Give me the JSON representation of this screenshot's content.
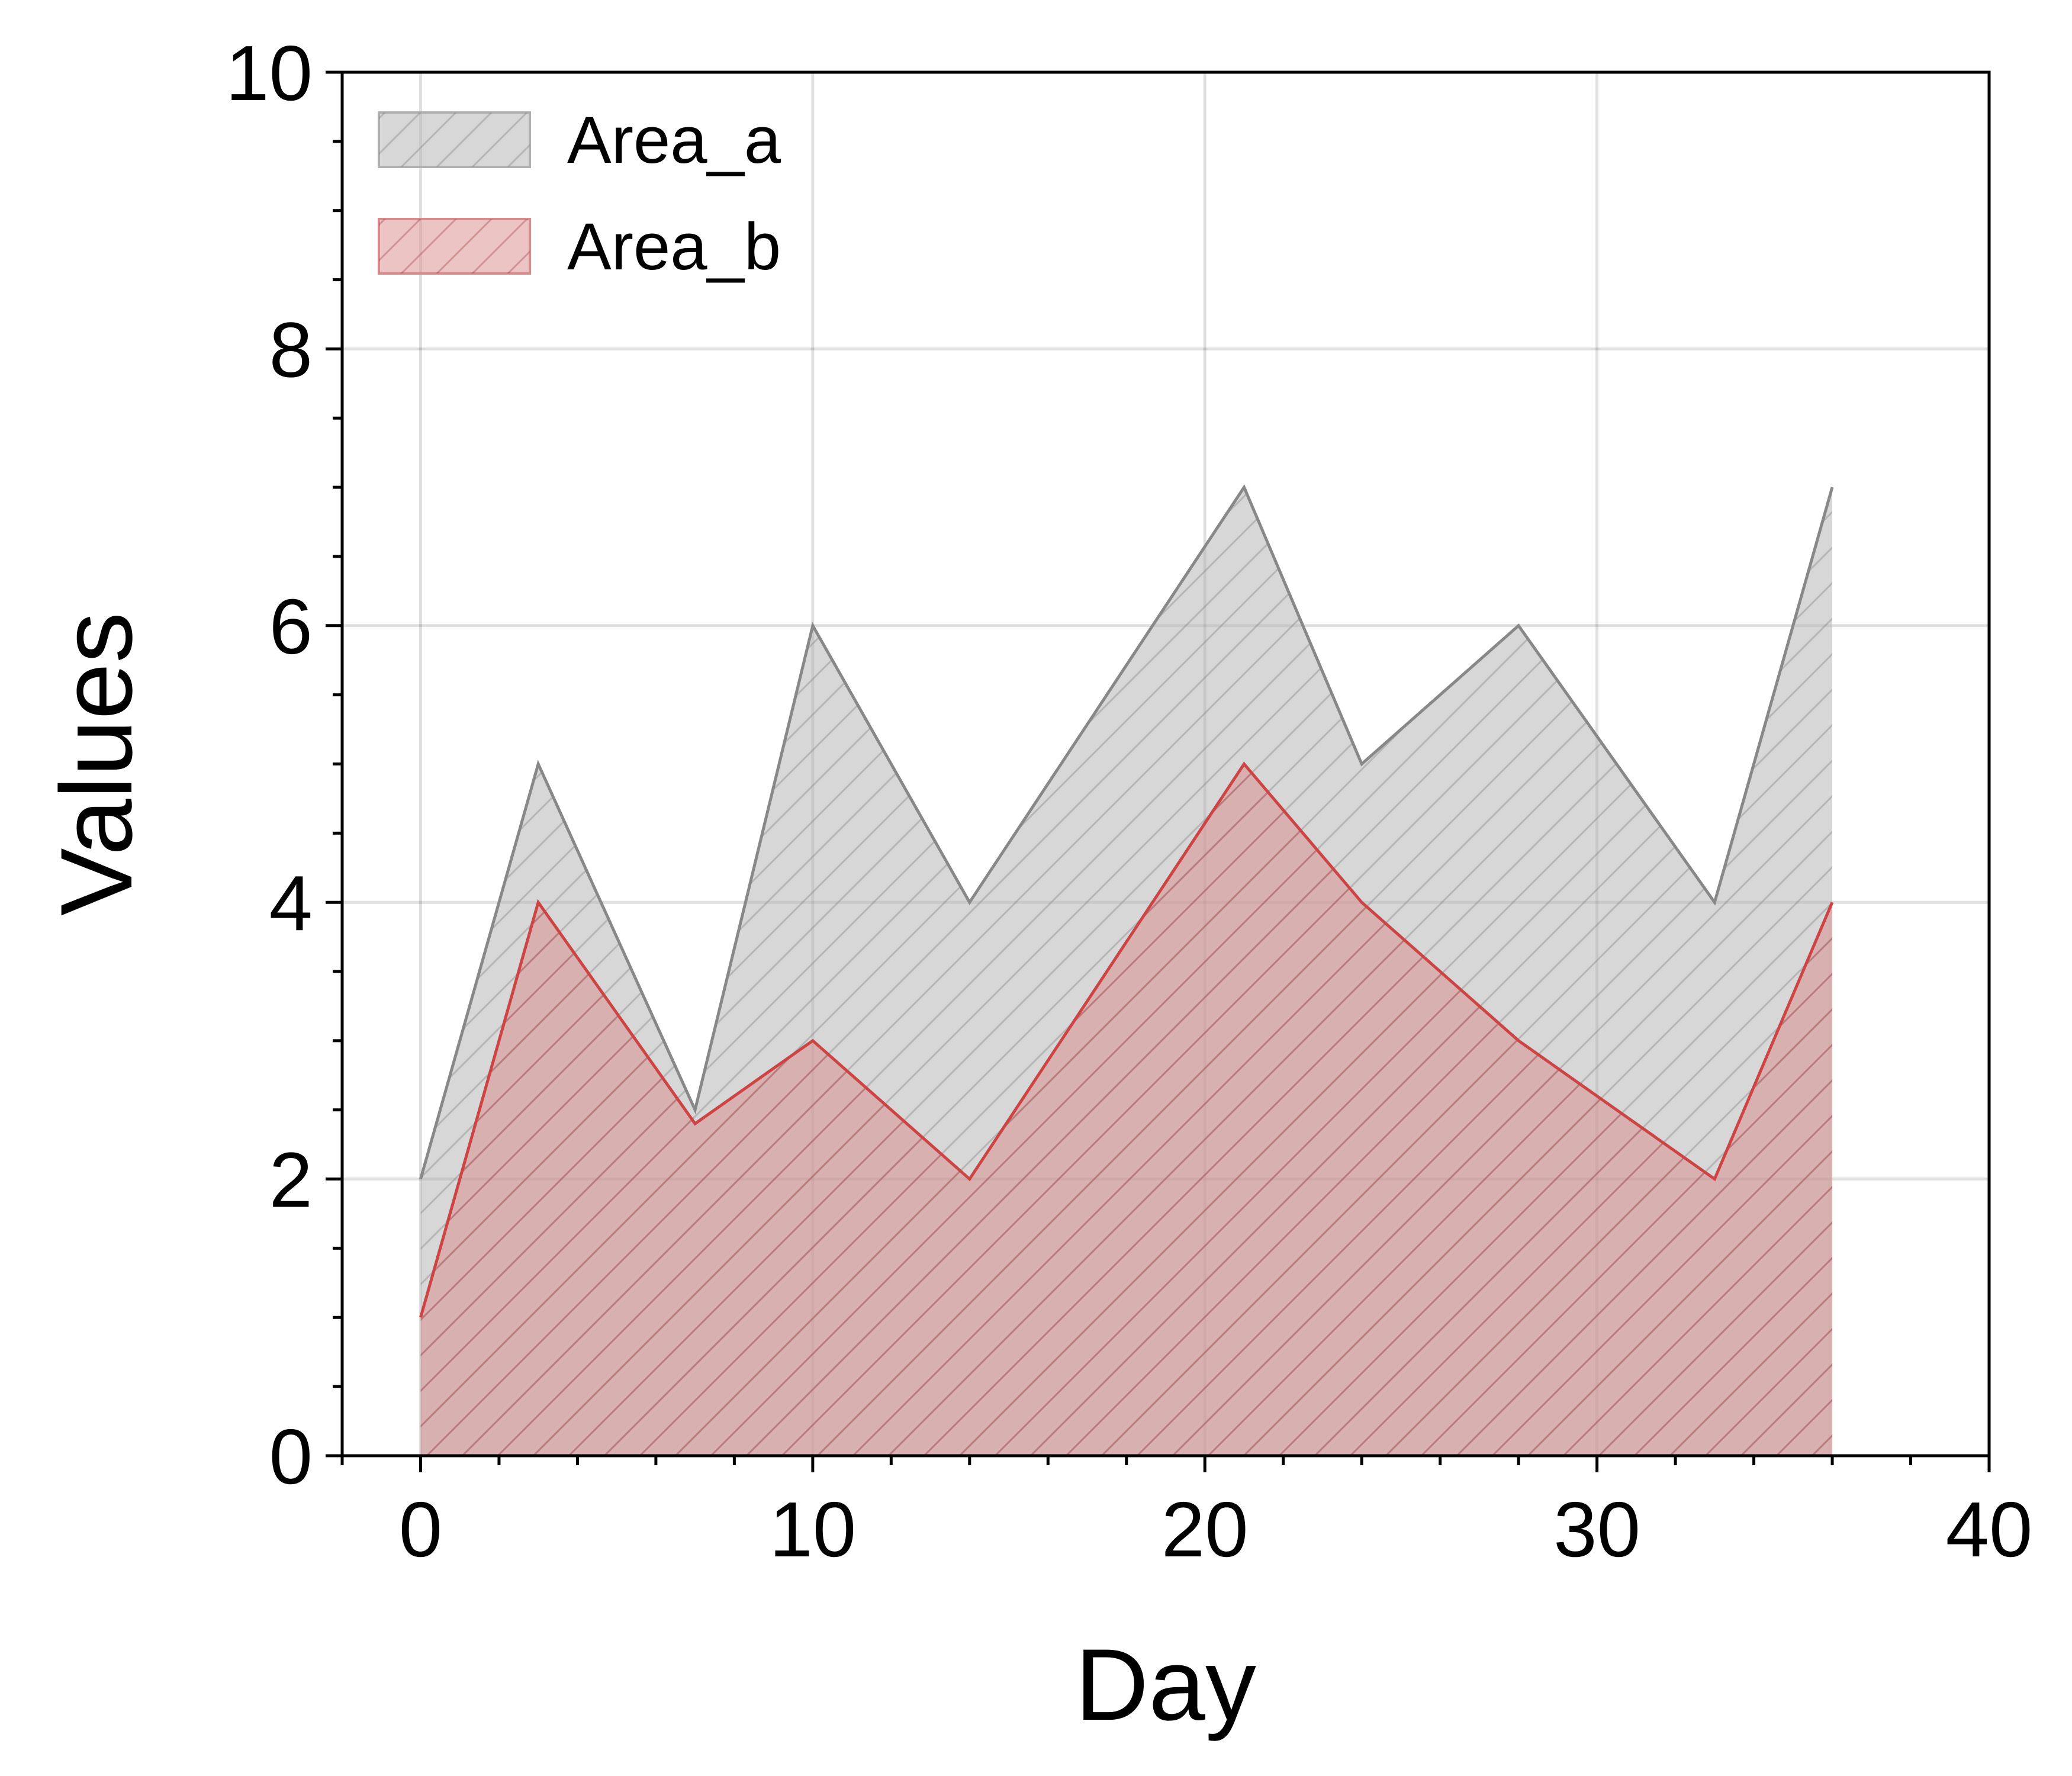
{
  "chart_data": {
    "type": "area",
    "title": "",
    "xlabel": "Day",
    "ylabel": "Values",
    "xlim": [
      -2,
      40
    ],
    "ylim": [
      0,
      10
    ],
    "x_ticks": [
      0,
      10,
      20,
      30,
      40
    ],
    "y_ticks": [
      0,
      2,
      4,
      6,
      8,
      10
    ],
    "x_minor_step": 2,
    "y_minor_step": 0.5,
    "grid": true,
    "legend_position": "top-left",
    "x": [
      0,
      3,
      7,
      10,
      14,
      21,
      24,
      28,
      33,
      36
    ],
    "series": [
      {
        "name": "Area_a",
        "values": [
          2,
          5,
          2.5,
          6,
          4,
          7,
          5,
          6,
          4,
          7
        ],
        "fill_color": "#b0b0b0",
        "line_color": "#888888",
        "hatch": "diagonal"
      },
      {
        "name": "Area_b",
        "values": [
          1,
          4,
          2.4,
          3,
          2,
          5,
          4,
          3,
          2,
          4
        ],
        "fill_color": "#d98a8a",
        "line_color": "#cc4444",
        "hatch": "diagonal"
      }
    ]
  }
}
